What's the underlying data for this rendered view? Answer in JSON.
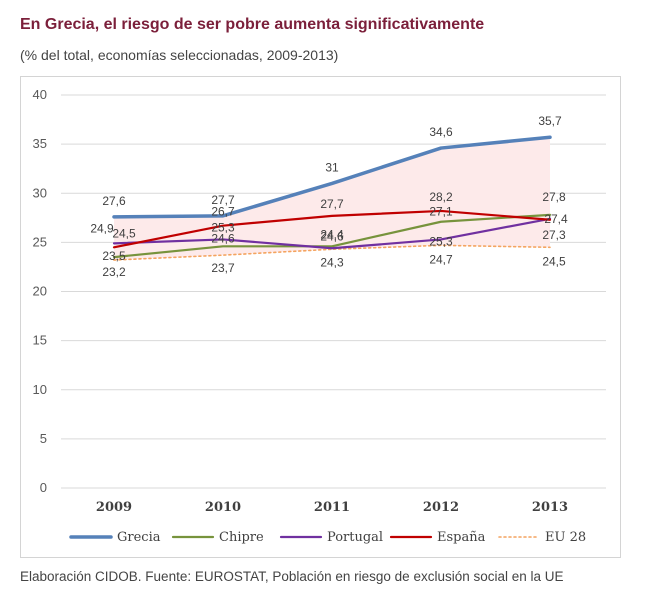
{
  "header": {
    "title": "En Grecia, el riesgo de ser pobre aumenta significativamente",
    "subtitle": "(% del total, economías seleccionadas, 2009-2013)"
  },
  "footer": {
    "source": "Elaboración CIDOB. Fuente: EUROSTAT, Población en riesgo de exclusión social en la UE"
  },
  "colors": {
    "title": "#7b1f3a",
    "shade": "#fdeaea",
    "grid": "#d9d9d9"
  },
  "chart_data": {
    "type": "line",
    "title": "En Grecia, el riesgo de ser pobre aumenta significativamente",
    "subtitle": "(% del total, economías seleccionadas, 2009-2013)",
    "xlabel": "",
    "ylabel": "",
    "categories": [
      "2009",
      "2010",
      "2011",
      "2012",
      "2013"
    ],
    "ylim": [
      0,
      40
    ],
    "yticks": [
      0,
      5,
      10,
      15,
      20,
      25,
      30,
      35,
      40
    ],
    "grid": true,
    "legend_position": "bottom",
    "shaded_band": {
      "between": [
        "Grecia",
        "EU 28"
      ],
      "color": "#fdeaea"
    },
    "series": [
      {
        "name": "Grecia",
        "values": [
          27.6,
          27.7,
          31,
          34.6,
          35.7
        ],
        "labels": [
          "27,6",
          "27,7",
          "31",
          "34,6",
          "35,7"
        ],
        "color": "#5581b9",
        "style": "solid-thick"
      },
      {
        "name": "Chipre",
        "values": [
          23.5,
          24.6,
          24.6,
          27.1,
          27.8
        ],
        "labels": [
          "23,5",
          "24,6",
          "24,6",
          "27,1",
          "27,8"
        ],
        "color": "#77933c",
        "style": "solid"
      },
      {
        "name": "Portugal",
        "values": [
          24.9,
          25.3,
          24.4,
          25.3,
          27.4
        ],
        "labels": [
          "24,9",
          "25,3",
          "24,4",
          "25,3",
          "27,4"
        ],
        "color": "#7030a0",
        "style": "solid"
      },
      {
        "name": "España",
        "values": [
          24.5,
          26.7,
          27.7,
          28.2,
          27.3
        ],
        "labels": [
          "24,5",
          "26,7",
          "27,7",
          "28,2",
          "27,3"
        ],
        "color": "#c00000",
        "style": "solid"
      },
      {
        "name": "EU 28",
        "values": [
          23.2,
          23.7,
          24.3,
          24.7,
          24.5
        ],
        "labels": [
          "23,2",
          "23,7",
          "24,3",
          "24,7",
          "24,5"
        ],
        "color": "#f4a460",
        "style": "dotted"
      }
    ]
  }
}
